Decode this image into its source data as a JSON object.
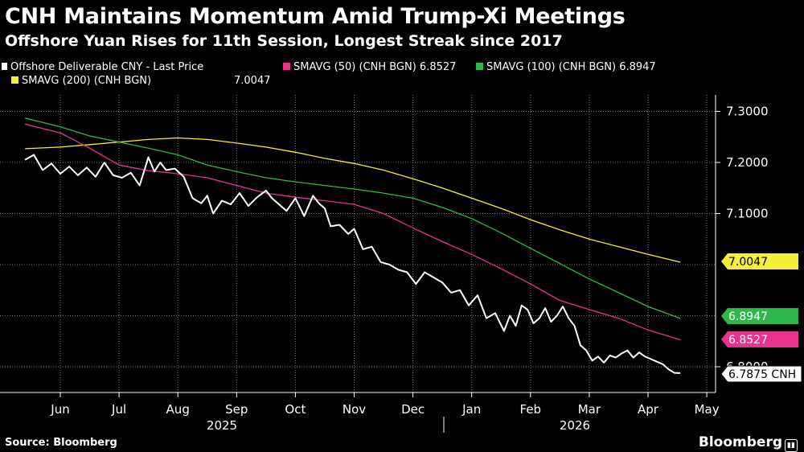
{
  "title": "CNH Maintains Momentum Amid Trump-Xi Meetings",
  "subtitle": "Offshore Yuan Rises for 11th Session, Longest Streak since 2017",
  "source": "Source: Bloomberg",
  "brand": "Bloomberg",
  "legend": {
    "price_label": "Offshore Deliverable CNY - Last Price",
    "sma50_label": "SMAVG (50) (CNH BGN) 6.8527",
    "sma100_label": "SMAVG (100) (CNH BGN) 6.8947",
    "sma200_label": "SMAVG (200) (CNH BGN)",
    "sma200_value": "7.0047"
  },
  "colors": {
    "background": "#000000",
    "price": "#ffffff",
    "sma50": "#e8338f",
    "sma100": "#2fb84a",
    "sma200": "#f5ee3a",
    "grid": "#777777"
  },
  "chart_data": {
    "type": "line",
    "x_ticks": [
      "Jun",
      "Jul",
      "Aug",
      "Sep",
      "Oct",
      "Nov",
      "Dec",
      "Jan",
      "Feb",
      "Mar",
      "Apr",
      "May"
    ],
    "x_years": [
      "2025",
      "2026"
    ],
    "y_ticks": [
      "7.3000",
      "7.2000",
      "7.1000",
      "6.8000"
    ],
    "ylim": [
      6.77,
      7.32
    ],
    "grid": true,
    "y_axis_side": "right",
    "x_month_index": [
      0,
      1,
      2,
      3,
      4,
      5,
      6,
      7,
      8,
      9,
      10,
      11
    ],
    "last_value_tags": [
      {
        "series": "SMAVG (200)",
        "label": "7.0047",
        "value": 7.0047
      },
      {
        "series": "SMAVG (100)",
        "label": "6.8947",
        "value": 6.8947
      },
      {
        "series": "SMAVG (50)",
        "label": "6.8527",
        "value": 6.8527
      },
      {
        "series": "Offshore Deliverable CNY - Last Price",
        "label": "6.7875 CNH",
        "value": 6.7875
      }
    ],
    "series": [
      {
        "name": "Offshore Deliverable CNY - Last Price",
        "x": [
          -0.6,
          -0.45,
          -0.3,
          -0.15,
          0,
          0.15,
          0.3,
          0.45,
          0.6,
          0.75,
          0.9,
          1.05,
          1.2,
          1.35,
          1.5,
          1.6,
          1.7,
          1.8,
          1.95,
          2.1,
          2.25,
          2.4,
          2.5,
          2.6,
          2.75,
          2.9,
          3.05,
          3.2,
          3.35,
          3.5,
          3.6,
          3.7,
          3.85,
          4.0,
          4.15,
          4.3,
          4.4,
          4.5,
          4.6,
          4.75,
          4.9,
          5.0,
          5.15,
          5.3,
          5.45,
          5.6,
          5.75,
          5.9,
          6.05,
          6.2,
          6.35,
          6.5,
          6.65,
          6.8,
          6.95,
          7.1,
          7.25,
          7.4,
          7.55,
          7.65,
          7.75,
          7.85,
          7.95,
          8.05,
          8.15,
          8.25,
          8.35,
          8.45,
          8.55,
          8.65,
          8.75,
          8.85,
          8.95,
          9.05,
          9.15,
          9.25,
          9.35,
          9.45,
          9.55,
          9.65,
          9.75,
          9.85,
          9.95,
          10.05,
          10.15,
          10.25,
          10.35,
          10.45,
          10.55
        ],
        "values": [
          7.205,
          7.215,
          7.185,
          7.198,
          7.178,
          7.192,
          7.175,
          7.19,
          7.172,
          7.2,
          7.175,
          7.17,
          7.18,
          7.155,
          7.21,
          7.182,
          7.2,
          7.185,
          7.188,
          7.172,
          7.13,
          7.12,
          7.135,
          7.1,
          7.125,
          7.118,
          7.14,
          7.115,
          7.132,
          7.145,
          7.13,
          7.12,
          7.105,
          7.13,
          7.095,
          7.135,
          7.12,
          7.11,
          7.075,
          7.078,
          7.06,
          7.07,
          7.03,
          7.035,
          7.005,
          7.0,
          6.99,
          6.985,
          6.962,
          6.985,
          6.975,
          6.965,
          6.945,
          6.95,
          6.92,
          6.94,
          6.895,
          6.905,
          6.87,
          6.9,
          6.88,
          6.92,
          6.912,
          6.885,
          6.895,
          6.915,
          6.888,
          6.9,
          6.918,
          6.895,
          6.88,
          6.842,
          6.832,
          6.812,
          6.82,
          6.808,
          6.822,
          6.818,
          6.826,
          6.832,
          6.818,
          6.828,
          6.82,
          6.815,
          6.81,
          6.805,
          6.795,
          6.788,
          6.7875
        ]
      },
      {
        "name": "SMAVG (50)",
        "x": [
          -0.6,
          0,
          0.5,
          1.0,
          1.5,
          2.0,
          2.5,
          3.0,
          3.5,
          4.0,
          4.5,
          5.0,
          5.5,
          6.0,
          6.5,
          7.0,
          7.5,
          8.0,
          8.5,
          9.0,
          9.5,
          10.0,
          10.55
        ],
        "values": [
          7.275,
          7.258,
          7.228,
          7.195,
          7.184,
          7.178,
          7.17,
          7.155,
          7.14,
          7.132,
          7.125,
          7.118,
          7.1,
          7.072,
          7.045,
          7.02,
          6.992,
          6.962,
          6.93,
          6.912,
          6.895,
          6.872,
          6.8527
        ]
      },
      {
        "name": "SMAVG (100)",
        "x": [
          -0.6,
          0,
          0.5,
          1.0,
          1.5,
          2.0,
          2.5,
          3.0,
          3.5,
          4.0,
          4.5,
          5.0,
          5.5,
          6.0,
          6.5,
          7.0,
          7.5,
          8.0,
          8.5,
          9.0,
          9.5,
          10.0,
          10.55
        ],
        "values": [
          7.287,
          7.27,
          7.252,
          7.24,
          7.228,
          7.215,
          7.195,
          7.182,
          7.17,
          7.162,
          7.155,
          7.148,
          7.14,
          7.13,
          7.112,
          7.09,
          7.062,
          7.032,
          7.002,
          6.972,
          6.945,
          6.918,
          6.8947
        ]
      },
      {
        "name": "SMAVG (200)",
        "x": [
          -0.6,
          0,
          0.5,
          1.0,
          1.5,
          2.0,
          2.5,
          3.0,
          3.5,
          4.0,
          4.5,
          5.0,
          5.5,
          6.0,
          6.5,
          7.0,
          7.5,
          8.0,
          8.5,
          9.0,
          9.5,
          10.0,
          10.55
        ],
        "values": [
          7.227,
          7.23,
          7.235,
          7.24,
          7.245,
          7.248,
          7.245,
          7.238,
          7.23,
          7.22,
          7.208,
          7.198,
          7.185,
          7.168,
          7.15,
          7.13,
          7.11,
          7.088,
          7.068,
          7.05,
          7.035,
          7.02,
          7.0047
        ]
      }
    ]
  }
}
